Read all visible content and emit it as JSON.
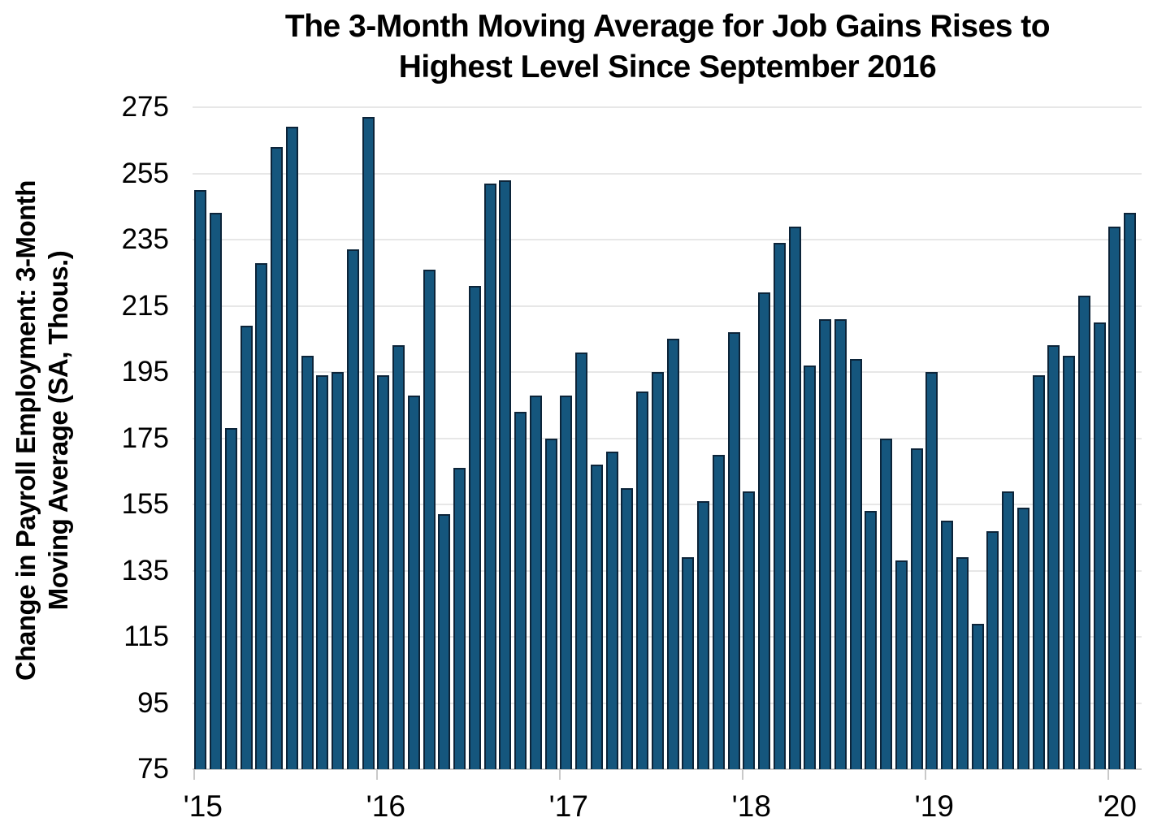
{
  "chart_data": {
    "type": "bar",
    "title_lines": [
      "The 3-Month Moving Average for Job Gains Rises to",
      "Highest Level Since September 2016"
    ],
    "ylabel_lines": [
      "Change in Payroll Employment: 3-Month",
      "Moving Average (SA, Thous.)"
    ],
    "x_tick_labels": [
      "'15",
      "'16",
      "'17",
      "'18",
      "'19",
      "'20"
    ],
    "year_tick_bar_indices": [
      0,
      12,
      24,
      36,
      48,
      60
    ],
    "y_ticks": [
      275,
      255,
      235,
      215,
      195,
      175,
      155,
      135,
      115,
      95,
      75
    ],
    "ylim": [
      75,
      275
    ],
    "grid": true,
    "legend": false,
    "bar_color": "#15567d",
    "bar_border_color": "#0c2439",
    "gridline_color": "#e7e7e7",
    "axis_line_color": "#cccccc",
    "values": [
      250,
      243,
      178,
      209,
      228,
      263,
      269,
      200,
      194,
      195,
      232,
      272,
      194,
      203,
      188,
      226,
      152,
      166,
      221,
      252,
      253,
      183,
      188,
      175,
      188,
      201,
      167,
      171,
      160,
      189,
      195,
      205,
      139,
      156,
      170,
      207,
      159,
      219,
      234,
      239,
      197,
      211,
      211,
      199,
      153,
      175,
      138,
      172,
      195,
      150,
      139,
      119,
      147,
      159,
      154,
      194,
      203,
      200,
      218,
      210,
      239,
      243
    ]
  }
}
